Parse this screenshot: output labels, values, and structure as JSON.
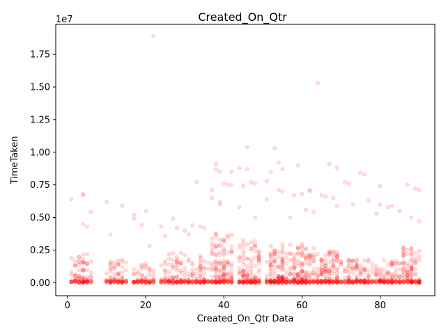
{
  "chart_data": {
    "type": "scatter",
    "title": "Created_On_Qtr",
    "xlabel": "Created_On_Qtr Data",
    "ylabel": "TimeTaken",
    "y_offset_label": "1e7",
    "xlim": [
      -3,
      94
    ],
    "ylim": [
      -1000000,
      19800000
    ],
    "x_ticks": [
      0,
      20,
      40,
      60,
      80
    ],
    "x_tick_labels": [
      "0",
      "20",
      "40",
      "60",
      "80"
    ],
    "y_ticks": [
      0,
      2500000,
      5000000,
      7500000,
      10000000,
      12500000,
      15000000,
      17500000
    ],
    "y_tick_labels": [
      "0.00",
      "0.25",
      "0.50",
      "0.75",
      "1.00",
      "1.25",
      "1.50",
      "1.75"
    ],
    "grid": false,
    "marker_color": "#ff0000",
    "marker_alpha": 0.12,
    "bands": [
      {
        "x_start": 1,
        "x_end": 6,
        "y_max": 2200000,
        "count": 70
      },
      {
        "x_start": 10,
        "x_end": 15,
        "y_max": 1800000,
        "count": 55
      },
      {
        "x_start": 17,
        "x_end": 22,
        "y_max": 1500000,
        "count": 50
      },
      {
        "x_start": 24,
        "x_end": 30,
        "y_max": 2300000,
        "count": 75
      },
      {
        "x_start": 31,
        "x_end": 36,
        "y_max": 2200000,
        "count": 65
      },
      {
        "x_start": 37,
        "x_end": 42,
        "y_max": 4000000,
        "count": 120
      },
      {
        "x_start": 44,
        "x_end": 49,
        "y_max": 3300000,
        "count": 115
      },
      {
        "x_start": 51,
        "x_end": 56,
        "y_max": 3000000,
        "count": 120
      },
      {
        "x_start": 57,
        "x_end": 63,
        "y_max": 3000000,
        "count": 140
      },
      {
        "x_start": 64,
        "x_end": 70,
        "y_max": 2400000,
        "count": 120
      },
      {
        "x_start": 71,
        "x_end": 77,
        "y_max": 1800000,
        "count": 90
      },
      {
        "x_start": 78,
        "x_end": 84,
        "y_max": 1800000,
        "count": 80
      },
      {
        "x_start": 85,
        "x_end": 90,
        "y_max": 2800000,
        "count": 100
      }
    ],
    "points": [
      {
        "x": 1,
        "y": 6400000
      },
      {
        "x": 4,
        "y": 4500000
      },
      {
        "x": 4,
        "y": 6700000
      },
      {
        "x": 4,
        "y": 6800000
      },
      {
        "x": 5,
        "y": 4300000
      },
      {
        "x": 6,
        "y": 5400000
      },
      {
        "x": 10,
        "y": 6200000
      },
      {
        "x": 11,
        "y": 3700000
      },
      {
        "x": 14,
        "y": 5900000
      },
      {
        "x": 17,
        "y": 4900000
      },
      {
        "x": 17,
        "y": 5200000
      },
      {
        "x": 19,
        "y": 4400000
      },
      {
        "x": 20,
        "y": 5500000
      },
      {
        "x": 21,
        "y": 2800000
      },
      {
        "x": 22,
        "y": 18900000
      },
      {
        "x": 24,
        "y": 4300000
      },
      {
        "x": 25,
        "y": 3600000
      },
      {
        "x": 27,
        "y": 4900000
      },
      {
        "x": 28,
        "y": 4200000
      },
      {
        "x": 30,
        "y": 4000000
      },
      {
        "x": 31,
        "y": 3700000
      },
      {
        "x": 32,
        "y": 4400000
      },
      {
        "x": 33,
        "y": 7700000
      },
      {
        "x": 34,
        "y": 4300000
      },
      {
        "x": 35,
        "y": 4200000
      },
      {
        "x": 37,
        "y": 6500000
      },
      {
        "x": 37,
        "y": 7100000
      },
      {
        "x": 38,
        "y": 8700000
      },
      {
        "x": 38,
        "y": 9100000
      },
      {
        "x": 39,
        "y": 6200000
      },
      {
        "x": 39,
        "y": 6000000
      },
      {
        "x": 39,
        "y": 8500000
      },
      {
        "x": 40,
        "y": 7600000
      },
      {
        "x": 41,
        "y": 7500000
      },
      {
        "x": 42,
        "y": 7500000
      },
      {
        "x": 42,
        "y": 8500000
      },
      {
        "x": 44,
        "y": 5800000
      },
      {
        "x": 44,
        "y": 8800000
      },
      {
        "x": 45,
        "y": 7400000
      },
      {
        "x": 46,
        "y": 10400000
      },
      {
        "x": 46,
        "y": 8700000
      },
      {
        "x": 47,
        "y": 7700000
      },
      {
        "x": 48,
        "y": 7600000
      },
      {
        "x": 48,
        "y": 5000000
      },
      {
        "x": 51,
        "y": 6400000
      },
      {
        "x": 51,
        "y": 7800000
      },
      {
        "x": 52,
        "y": 8500000
      },
      {
        "x": 53,
        "y": 10300000
      },
      {
        "x": 54,
        "y": 9200000
      },
      {
        "x": 54,
        "y": 7100000
      },
      {
        "x": 55,
        "y": 7000000
      },
      {
        "x": 55,
        "y": 8700000
      },
      {
        "x": 57,
        "y": 5000000
      },
      {
        "x": 58,
        "y": 6700000
      },
      {
        "x": 59,
        "y": 9000000
      },
      {
        "x": 60,
        "y": 6800000
      },
      {
        "x": 61,
        "y": 5600000
      },
      {
        "x": 62,
        "y": 7100000
      },
      {
        "x": 62,
        "y": 7000000
      },
      {
        "x": 63,
        "y": 5400000
      },
      {
        "x": 64,
        "y": 15300000
      },
      {
        "x": 65,
        "y": 6700000
      },
      {
        "x": 66,
        "y": 6600000
      },
      {
        "x": 67,
        "y": 9100000
      },
      {
        "x": 68,
        "y": 6500000
      },
      {
        "x": 69,
        "y": 8800000
      },
      {
        "x": 69,
        "y": 5900000
      },
      {
        "x": 71,
        "y": 7700000
      },
      {
        "x": 72,
        "y": 7600000
      },
      {
        "x": 73,
        "y": 6000000
      },
      {
        "x": 75,
        "y": 8400000
      },
      {
        "x": 76,
        "y": 8300000
      },
      {
        "x": 77,
        "y": 6300000
      },
      {
        "x": 79,
        "y": 5300000
      },
      {
        "x": 80,
        "y": 7400000
      },
      {
        "x": 80,
        "y": 6000000
      },
      {
        "x": 82,
        "y": 5800000
      },
      {
        "x": 83,
        "y": 5900000
      },
      {
        "x": 85,
        "y": 5500000
      },
      {
        "x": 87,
        "y": 7500000
      },
      {
        "x": 88,
        "y": 5000000
      },
      {
        "x": 89,
        "y": 7200000
      },
      {
        "x": 90,
        "y": 7100000
      },
      {
        "x": 90,
        "y": 4700000
      }
    ]
  }
}
